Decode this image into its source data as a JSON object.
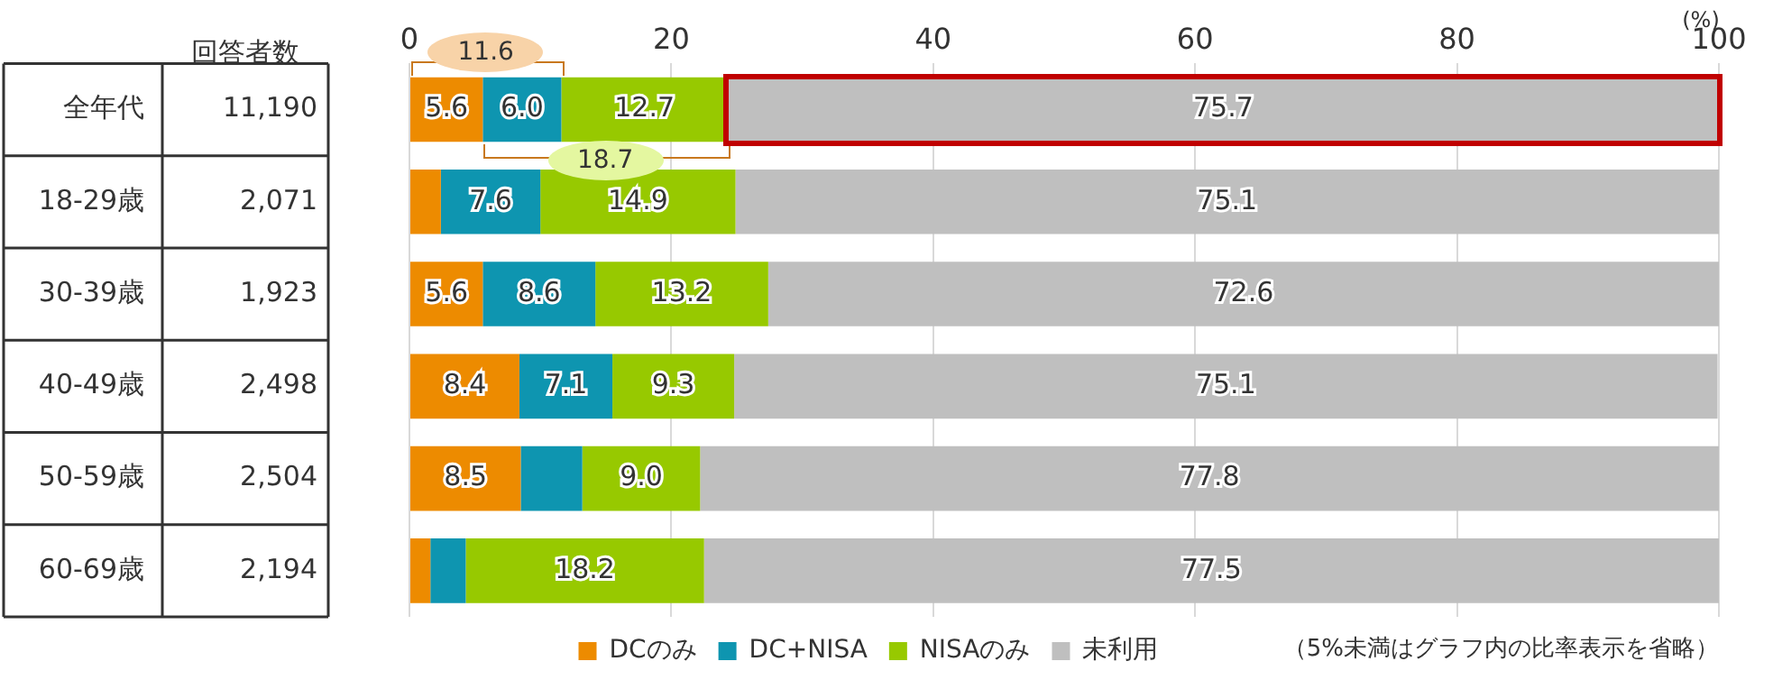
{
  "chart_data": {
    "type": "bar",
    "orientation": "horizontal",
    "stacked": true,
    "categories": [
      "全年代",
      "18-29歳",
      "30-39歳",
      "40-49歳",
      "50-59歳",
      "60-69歳"
    ],
    "series": [
      {
        "name": "DCのみ",
        "color": "#ed8b00",
        "values": [
          5.6,
          2.4,
          5.6,
          8.4,
          8.5,
          1.6
        ],
        "value_labels": [
          "5.6",
          null,
          "5.6",
          "8.4",
          "8.5",
          null
        ]
      },
      {
        "name": "DC+NISA",
        "color": "#0e95b0",
        "values": [
          6.0,
          7.6,
          8.6,
          7.1,
          4.7,
          2.7
        ],
        "value_labels": [
          "6.0",
          "7.6",
          "8.6",
          "7.1",
          null,
          null
        ]
      },
      {
        "name": "NISAのみ",
        "color": "#97c900",
        "values": [
          12.7,
          14.9,
          13.2,
          9.3,
          9.0,
          18.2
        ],
        "value_labels": [
          "12.7",
          "14.9",
          "13.2",
          "9.3",
          "9.0",
          "18.2"
        ]
      },
      {
        "name": "未利用",
        "color": "#bfbfbf",
        "values": [
          75.7,
          75.1,
          72.6,
          75.1,
          77.8,
          77.5
        ],
        "value_labels": [
          "75.7",
          "75.1",
          "72.6",
          "75.1",
          "77.8",
          "77.5"
        ]
      }
    ],
    "xlim": [
      0,
      100
    ],
    "xticks": [
      0,
      20,
      40,
      60,
      80,
      100
    ],
    "grid": "x",
    "legend": "bottom",
    "annotations": [
      "11.6",
      "18.7",
      "(%)",
      "（5%未満はグラフ内の比率表示を省略）",
      "回答者数",
      "11,190",
      "2,071",
      "1,923",
      "2,498",
      "2,504",
      "2,194"
    ]
  }
}
